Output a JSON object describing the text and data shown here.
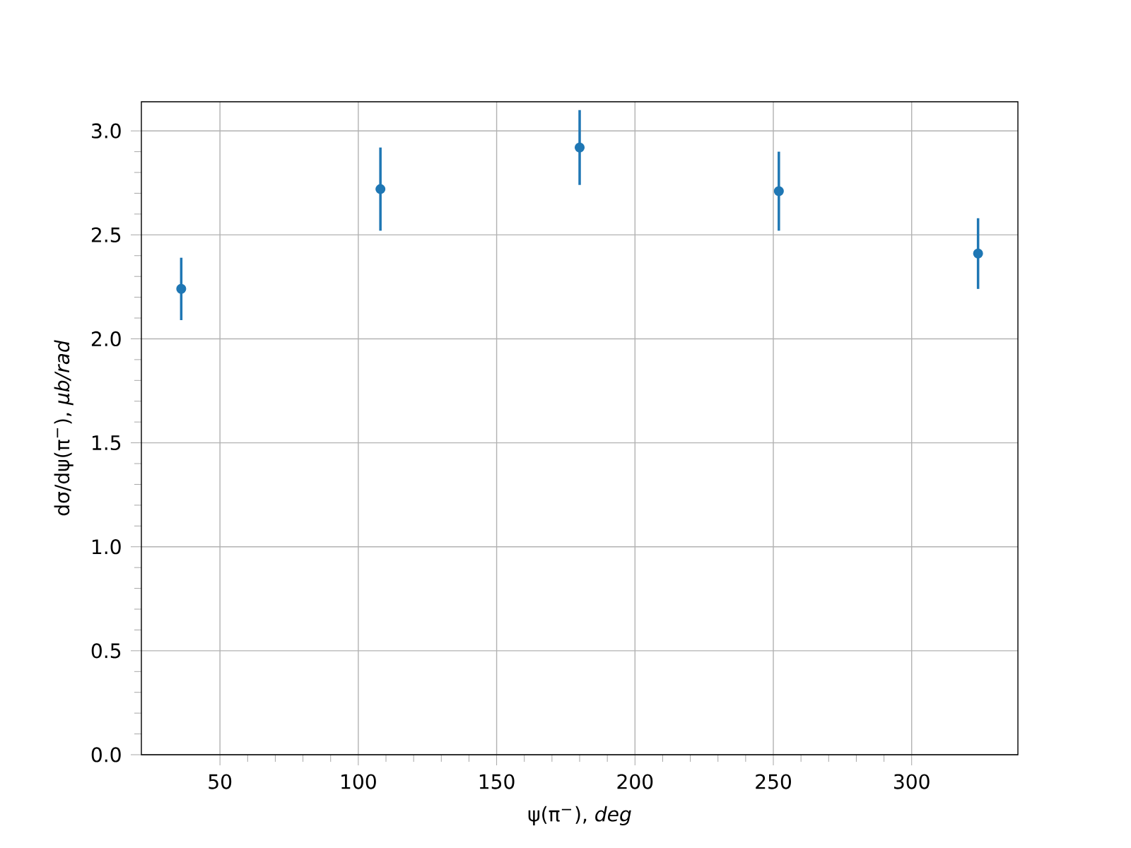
{
  "chart_data": {
    "type": "scatter",
    "xlabel": "ψ(π$^{−}$), *deg*",
    "ylabel": "dσ/dψ(π$^{−}$), *μb/rad*",
    "x": [
      36,
      108,
      180,
      252,
      324
    ],
    "values": [
      2.24,
      2.72,
      2.92,
      2.71,
      2.41
    ],
    "errors": [
      0.15,
      0.2,
      0.18,
      0.19,
      0.17
    ],
    "color": "#1f77b4",
    "marker": "circle",
    "xlim": [
      21.6,
      338.4
    ],
    "ylim": [
      0,
      3.14
    ],
    "xticks": [
      50,
      100,
      150,
      200,
      250,
      300
    ],
    "yticks": [
      {
        "value": 0,
        "label": "0.0"
      },
      0.5,
      {
        "value": 1,
        "label": "1.0"
      },
      1.5,
      {
        "value": 2,
        "label": "2.0"
      },
      2.5,
      {
        "value": 3,
        "label": "3.0"
      }
    ],
    "grid": true
  }
}
